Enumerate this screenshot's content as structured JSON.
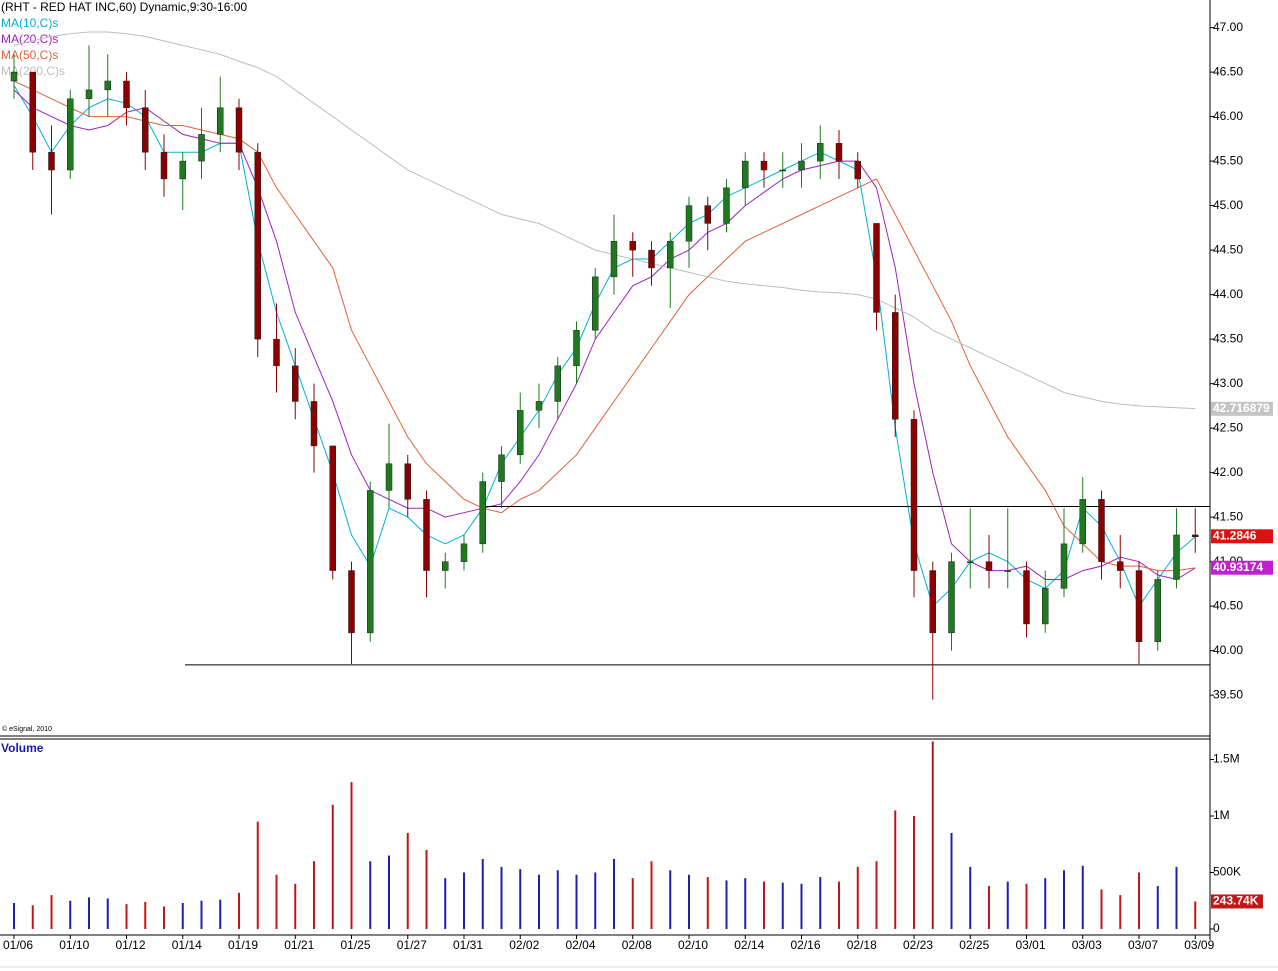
{
  "chart_data": [
    {
      "type": "candlestick",
      "title": "(RHT - RED HAT INC,60) Dynamic,9:30-16:00",
      "note": "© eSignal, 2010",
      "up_color": "#1f7a1f",
      "down_color": "#8b0000",
      "open": [
        46.4,
        46.5,
        45.6,
        45.4,
        46.2,
        46.3,
        46.4,
        46.1,
        45.6,
        45.3,
        45.5,
        45.8,
        46.1,
        45.6,
        43.5,
        43.2,
        42.8,
        42.3,
        40.9,
        40.2,
        41.8,
        42.1,
        41.7,
        40.9,
        41.0,
        41.2,
        41.9,
        42.2,
        42.7,
        42.8,
        43.2,
        43.6,
        44.2,
        44.6,
        44.5,
        44.3,
        44.6,
        45.0,
        44.8,
        45.2,
        45.5,
        45.4,
        45.4,
        45.5,
        45.7,
        45.5,
        44.8,
        43.8,
        42.6,
        40.9,
        40.2,
        41.0,
        41.0,
        40.9,
        40.9,
        40.3,
        40.7,
        41.2,
        41.7,
        41.0,
        40.9,
        40.1,
        40.8,
        41.3
      ],
      "high": [
        46.7,
        46.5,
        45.9,
        46.3,
        46.8,
        46.7,
        46.5,
        46.3,
        45.8,
        45.6,
        46.1,
        46.45,
        46.2,
        45.7,
        43.9,
        43.4,
        43.0,
        42.3,
        41.0,
        41.9,
        42.55,
        42.2,
        41.8,
        41.1,
        41.3,
        42.0,
        42.3,
        42.9,
        43.0,
        43.3,
        43.7,
        44.3,
        44.9,
        44.7,
        44.6,
        44.7,
        45.1,
        45.1,
        45.3,
        45.6,
        45.6,
        45.6,
        45.7,
        45.9,
        45.85,
        45.6,
        44.8,
        44.0,
        42.7,
        41.0,
        41.1,
        41.6,
        41.3,
        41.6,
        41.0,
        40.9,
        41.6,
        41.95,
        41.8,
        41.3,
        41.0,
        40.9,
        41.6,
        41.6
      ],
      "low": [
        46.2,
        45.4,
        44.9,
        45.3,
        46.0,
        46.0,
        45.9,
        45.4,
        45.1,
        44.95,
        45.3,
        45.6,
        45.4,
        43.3,
        42.9,
        42.6,
        42.0,
        40.8,
        39.85,
        40.1,
        41.6,
        41.5,
        40.6,
        40.7,
        40.9,
        41.1,
        41.6,
        42.1,
        42.5,
        42.6,
        43.0,
        43.5,
        44.0,
        44.2,
        44.1,
        43.85,
        44.3,
        44.5,
        44.7,
        45.0,
        45.2,
        45.2,
        45.2,
        45.3,
        45.3,
        45.2,
        43.6,
        42.4,
        40.6,
        39.45,
        40.0,
        40.7,
        40.7,
        40.7,
        40.15,
        40.2,
        40.6,
        41.1,
        40.8,
        40.7,
        39.85,
        40.0,
        40.7,
        41.1
      ],
      "close": [
        46.5,
        45.6,
        45.4,
        46.2,
        46.3,
        46.4,
        46.1,
        45.6,
        45.3,
        45.5,
        45.8,
        46.1,
        45.6,
        43.5,
        43.2,
        42.8,
        42.3,
        40.9,
        40.2,
        41.8,
        42.1,
        41.7,
        40.9,
        41.0,
        41.2,
        41.9,
        42.2,
        42.7,
        42.8,
        43.2,
        43.6,
        44.2,
        44.6,
        44.5,
        44.3,
        44.6,
        45.0,
        44.8,
        45.2,
        45.5,
        45.4,
        45.4,
        45.5,
        45.7,
        45.5,
        45.3,
        43.8,
        42.6,
        40.9,
        40.2,
        41.0,
        41.0,
        40.9,
        40.9,
        40.3,
        40.7,
        41.2,
        41.7,
        41.0,
        40.9,
        40.1,
        40.8,
        41.3,
        41.28
      ],
      "series": [
        {
          "name": "MA(10,C)s",
          "color": "#00b0d8",
          "values": [
            46.35,
            46.0,
            45.6,
            45.9,
            46.1,
            46.2,
            46.15,
            46.0,
            45.6,
            45.6,
            45.6,
            45.7,
            45.7,
            44.6,
            43.8,
            43.2,
            42.6,
            42.0,
            41.3,
            40.95,
            41.6,
            41.5,
            41.3,
            41.2,
            41.3,
            41.6,
            42.1,
            42.4,
            42.7,
            43.1,
            43.4,
            43.9,
            44.3,
            44.4,
            44.4,
            44.6,
            44.8,
            44.9,
            45.1,
            45.2,
            45.3,
            45.4,
            45.5,
            45.6,
            45.5,
            45.4,
            44.2,
            42.5,
            41.2,
            40.5,
            40.7,
            41.0,
            41.1,
            41.0,
            40.8,
            40.7,
            40.9,
            41.6,
            41.4,
            41.0,
            40.5,
            40.8,
            41.1,
            41.28
          ]
        },
        {
          "name": "MA(20,C)s",
          "color": "#a020c0",
          "values": [
            46.3,
            46.1,
            46.0,
            45.9,
            45.85,
            45.9,
            46.05,
            46.1,
            45.95,
            45.8,
            45.75,
            45.7,
            45.7,
            45.2,
            44.6,
            43.8,
            43.3,
            42.8,
            42.2,
            41.8,
            41.7,
            41.6,
            41.6,
            41.5,
            41.55,
            41.6,
            41.65,
            41.9,
            42.2,
            42.6,
            43.0,
            43.5,
            43.8,
            44.1,
            44.2,
            44.4,
            44.5,
            44.7,
            44.8,
            45.0,
            45.15,
            45.3,
            45.4,
            45.45,
            45.5,
            45.5,
            45.2,
            44.3,
            43.0,
            42.0,
            41.2,
            41.0,
            40.9,
            40.9,
            40.95,
            40.8,
            40.8,
            40.9,
            40.95,
            41.05,
            41.0,
            40.85,
            40.8,
            40.93
          ]
        },
        {
          "name": "MA(50,C)s",
          "color": "#e0603c",
          "values": [
            46.4,
            46.3,
            46.2,
            46.1,
            46.0,
            46.0,
            46.0,
            45.95,
            45.9,
            45.9,
            45.85,
            45.8,
            45.75,
            45.6,
            45.2,
            44.9,
            44.6,
            44.3,
            43.6,
            43.2,
            42.8,
            42.4,
            42.1,
            41.9,
            41.7,
            41.6,
            41.55,
            41.7,
            41.8,
            42.0,
            42.2,
            42.5,
            42.8,
            43.1,
            43.4,
            43.7,
            44.0,
            44.2,
            44.4,
            44.6,
            44.7,
            44.8,
            44.9,
            45.0,
            45.1,
            45.2,
            45.3,
            44.9,
            44.5,
            44.1,
            43.7,
            43.2,
            42.8,
            42.4,
            42.1,
            41.8,
            41.4,
            41.2,
            41.0,
            40.95,
            40.95,
            40.9,
            40.9,
            40.93
          ]
        },
        {
          "name": "MA(200,C)s",
          "color": "#bdbdbd",
          "values": [
            46.8,
            46.85,
            46.9,
            46.93,
            46.95,
            46.95,
            46.93,
            46.9,
            46.85,
            46.8,
            46.75,
            46.7,
            46.62,
            46.55,
            46.45,
            46.3,
            46.15,
            46.0,
            45.85,
            45.7,
            45.55,
            45.4,
            45.3,
            45.2,
            45.1,
            45.0,
            44.9,
            44.85,
            44.8,
            44.7,
            44.6,
            44.5,
            44.45,
            44.4,
            44.35,
            44.3,
            44.25,
            44.2,
            44.15,
            44.12,
            44.1,
            44.08,
            44.05,
            44.03,
            44.02,
            44.0,
            43.95,
            43.85,
            43.75,
            43.6,
            43.5,
            43.4,
            43.3,
            43.2,
            43.1,
            43.0,
            42.9,
            42.85,
            42.8,
            42.77,
            42.75,
            42.74,
            42.73,
            42.72
          ]
        }
      ],
      "markers": [
        {
          "value": 42.716879,
          "color": "#c4c4c4"
        },
        {
          "value": 41.2846,
          "color": "#e01010"
        },
        {
          "value": 40.93174,
          "color": "#c020d0"
        }
      ],
      "hlines": [
        {
          "value": 41.62
        },
        {
          "value": 39.84
        }
      ],
      "ylim": [
        39.03,
        47.31
      ],
      "yticks": [
        {
          "value": 39.5,
          "label": "39.50"
        },
        {
          "value": 40,
          "label": "40.00"
        },
        {
          "value": 40.5,
          "label": "40.50"
        },
        {
          "value": 41,
          "label": "41.00"
        },
        {
          "value": 41.5,
          "label": "41.50"
        },
        {
          "value": 42,
          "label": "42.00"
        },
        {
          "value": 42.5,
          "label": "42.50"
        },
        {
          "value": 43,
          "label": "43.00"
        },
        {
          "value": 43.5,
          "label": "43.50"
        },
        {
          "value": 44,
          "label": "44.00"
        },
        {
          "value": 44.5,
          "label": "44.50"
        },
        {
          "value": 45,
          "label": "45.00"
        },
        {
          "value": 45.5,
          "label": "45.50"
        },
        {
          "value": 46,
          "label": "46.00"
        },
        {
          "value": 46.5,
          "label": "46.50"
        },
        {
          "value": 47,
          "label": "47.00"
        }
      ]
    },
    {
      "type": "bar",
      "title": "Volume",
      "up_color": "#2020b0",
      "down_color": "#c01818",
      "categories": [
        "01/06",
        null,
        null,
        "01/10",
        null,
        null,
        "01/12",
        null,
        null,
        "01/14",
        null,
        null,
        "01/19",
        null,
        null,
        "01/21",
        null,
        null,
        "01/25",
        null,
        null,
        "01/27",
        null,
        null,
        "01/31",
        null,
        null,
        "02/02",
        null,
        null,
        "02/04",
        null,
        null,
        "02/08",
        null,
        null,
        "02/10",
        null,
        null,
        "02/14",
        null,
        null,
        "02/16",
        null,
        null,
        "02/18",
        null,
        null,
        "02/23",
        null,
        null,
        "02/25",
        null,
        null,
        "03/01",
        null,
        null,
        "03/03",
        null,
        null,
        "03/07",
        null,
        null,
        "03/09"
      ],
      "values": [
        230000,
        210000,
        300000,
        250000,
        280000,
        270000,
        220000,
        240000,
        200000,
        230000,
        250000,
        260000,
        320000,
        950000,
        480000,
        400000,
        600000,
        1100000,
        1300000,
        600000,
        650000,
        850000,
        700000,
        450000,
        500000,
        620000,
        550000,
        530000,
        480000,
        520000,
        480000,
        500000,
        620000,
        450000,
        600000,
        520000,
        480000,
        460000,
        430000,
        450000,
        420000,
        410000,
        400000,
        460000,
        420000,
        550000,
        600000,
        1050000,
        1000000,
        1660000,
        850000,
        550000,
        380000,
        420000,
        400000,
        450000,
        520000,
        560000,
        350000,
        300000,
        500000,
        380000,
        550000,
        243740
      ],
      "value_labels": [
        null,
        null,
        null,
        null,
        null,
        null,
        null,
        null,
        null,
        null,
        null,
        null,
        null,
        null,
        null,
        null,
        null,
        null,
        null,
        null,
        null,
        null,
        null,
        null,
        null,
        null,
        null,
        null,
        null,
        null,
        null,
        null,
        null,
        null,
        null,
        null,
        null,
        null,
        null,
        null,
        null,
        null,
        null,
        null,
        null,
        null,
        null,
        null,
        null,
        null,
        null,
        null,
        null,
        null,
        null,
        null,
        null,
        null,
        null,
        null,
        null,
        null,
        null,
        "243.74K"
      ],
      "ylim": [
        0,
        1655000
      ],
      "yticks": [
        0,
        {
          "value": 500000,
          "label": "500K"
        },
        {
          "value": 1000000,
          "label": "1M"
        },
        {
          "value": 1500000,
          "label": "1.5M"
        }
      ]
    }
  ]
}
